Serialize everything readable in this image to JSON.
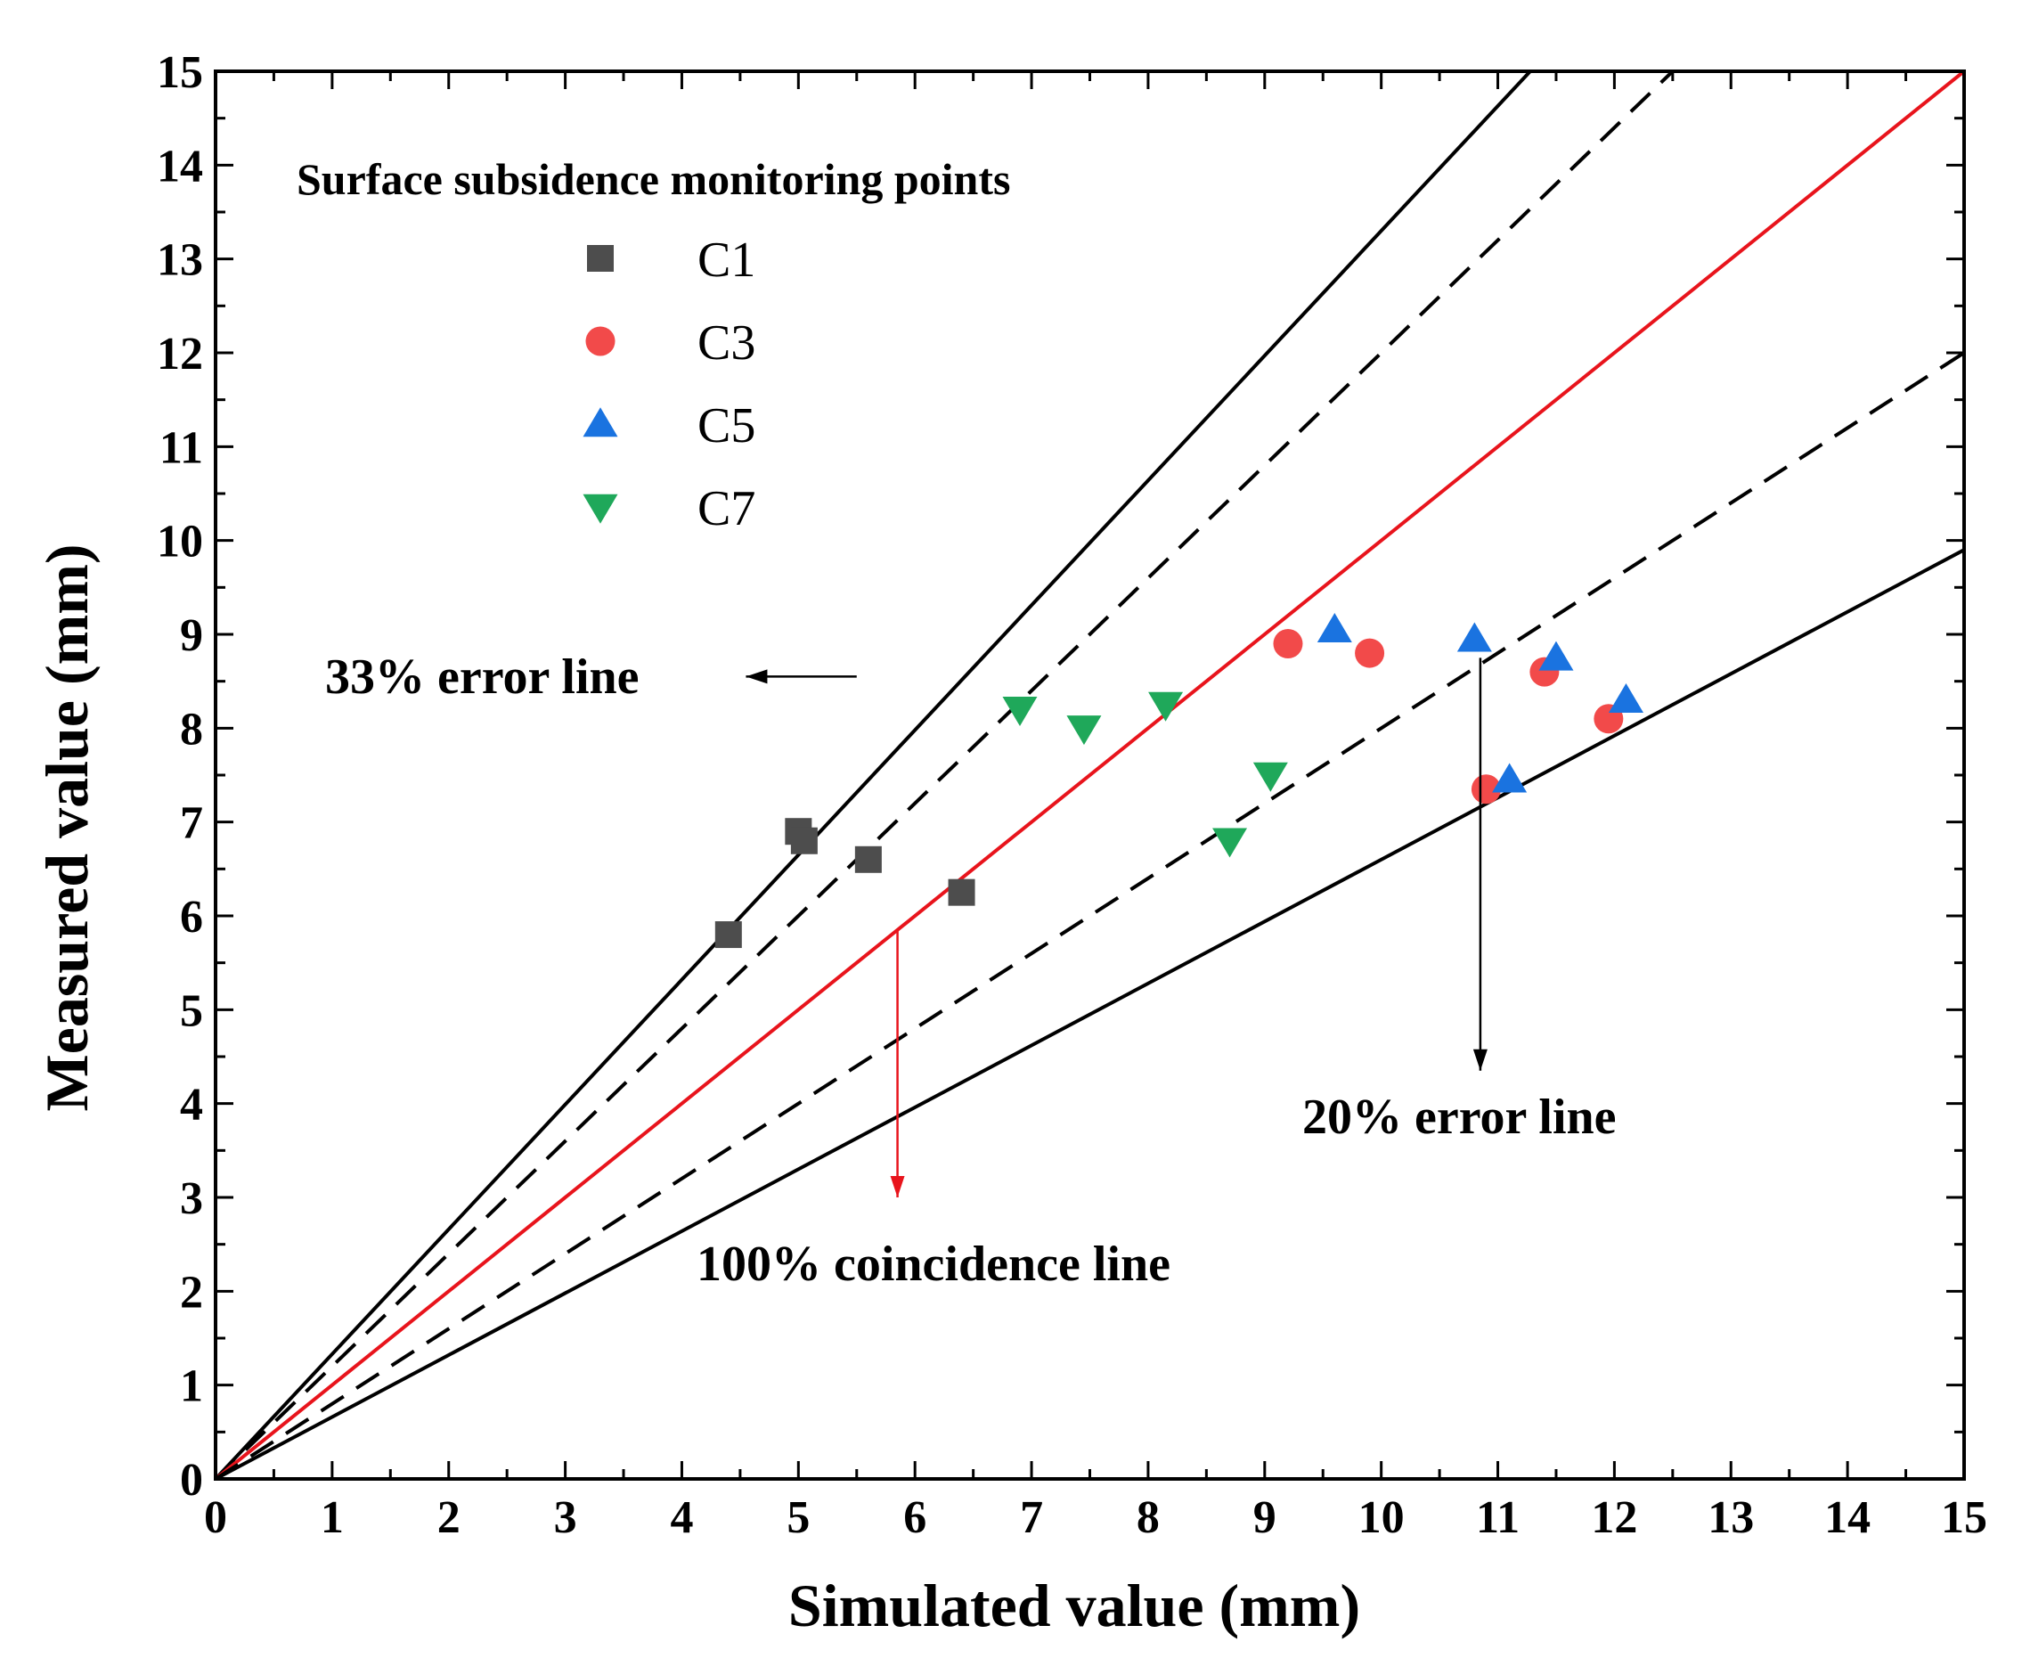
{
  "chart_data": {
    "type": "scatter",
    "title": "",
    "xlabel": "Simulated  value (mm)",
    "ylabel": "Measured value (mm)",
    "xlim": [
      0,
      15
    ],
    "ylim": [
      0,
      15
    ],
    "xticks": [
      "0",
      "1",
      "2",
      "3",
      "4",
      "5",
      "6",
      "7",
      "8",
      "9",
      "10",
      "11",
      "12",
      "13",
      "14",
      "15"
    ],
    "yticks": [
      "0",
      "1",
      "2",
      "3",
      "4",
      "5",
      "6",
      "7",
      "8",
      "9",
      "10",
      "11",
      "12",
      "13",
      "14",
      "15"
    ],
    "legend": {
      "title": "Surface subsidence monitoring points",
      "position": "top-left"
    },
    "series": [
      {
        "name": "C1",
        "marker": "square",
        "color": "#4d4d4d",
        "points": [
          [
            4.4,
            5.8
          ],
          [
            5.0,
            6.9
          ],
          [
            5.05,
            6.8
          ],
          [
            5.6,
            6.6
          ],
          [
            6.4,
            6.25
          ]
        ]
      },
      {
        "name": "C3",
        "marker": "circle",
        "color": "#f24a4a",
        "points": [
          [
            9.2,
            8.9
          ],
          [
            9.9,
            8.8
          ],
          [
            10.9,
            7.35
          ],
          [
            11.4,
            8.6
          ],
          [
            11.95,
            8.1
          ]
        ]
      },
      {
        "name": "C5",
        "marker": "triangle-up",
        "color": "#1a73e0",
        "points": [
          [
            9.6,
            9.05
          ],
          [
            10.8,
            8.95
          ],
          [
            11.1,
            7.45
          ],
          [
            11.5,
            8.75
          ],
          [
            12.1,
            8.3
          ]
        ]
      },
      {
        "name": "C7",
        "marker": "triangle-down",
        "color": "#1fa85a",
        "points": [
          [
            6.9,
            8.2
          ],
          [
            7.45,
            8.0
          ],
          [
            8.15,
            8.25
          ],
          [
            8.7,
            6.8
          ],
          [
            9.05,
            7.5
          ]
        ]
      }
    ],
    "reference_lines": [
      {
        "name": "upper-33",
        "slope": 1.33,
        "style": "solid",
        "color": "#000000"
      },
      {
        "name": "upper-20",
        "slope": 1.2,
        "style": "dashed",
        "color": "#000000"
      },
      {
        "name": "coincidence",
        "slope": 1.0,
        "style": "solid",
        "color": "#e8141c"
      },
      {
        "name": "lower-20",
        "slope": 0.8,
        "style": "dashed",
        "color": "#000000"
      },
      {
        "name": "lower-33",
        "slope": 0.66,
        "style": "solid",
        "color": "#000000"
      }
    ],
    "annotations": [
      {
        "text": "33% error line",
        "arrow_from": [
          5.5,
          8.55
        ],
        "arrow_to": [
          4.55,
          8.55
        ],
        "color": "#000000"
      },
      {
        "text": "20% error line",
        "arrow_from": [
          10.85,
          8.75
        ],
        "arrow_to": [
          10.85,
          4.35
        ],
        "color": "#000000"
      },
      {
        "text": "100% coincidence line",
        "arrow_from": [
          5.85,
          5.85
        ],
        "arrow_to": [
          5.85,
          3.0
        ],
        "color": "#e8141c"
      }
    ]
  }
}
